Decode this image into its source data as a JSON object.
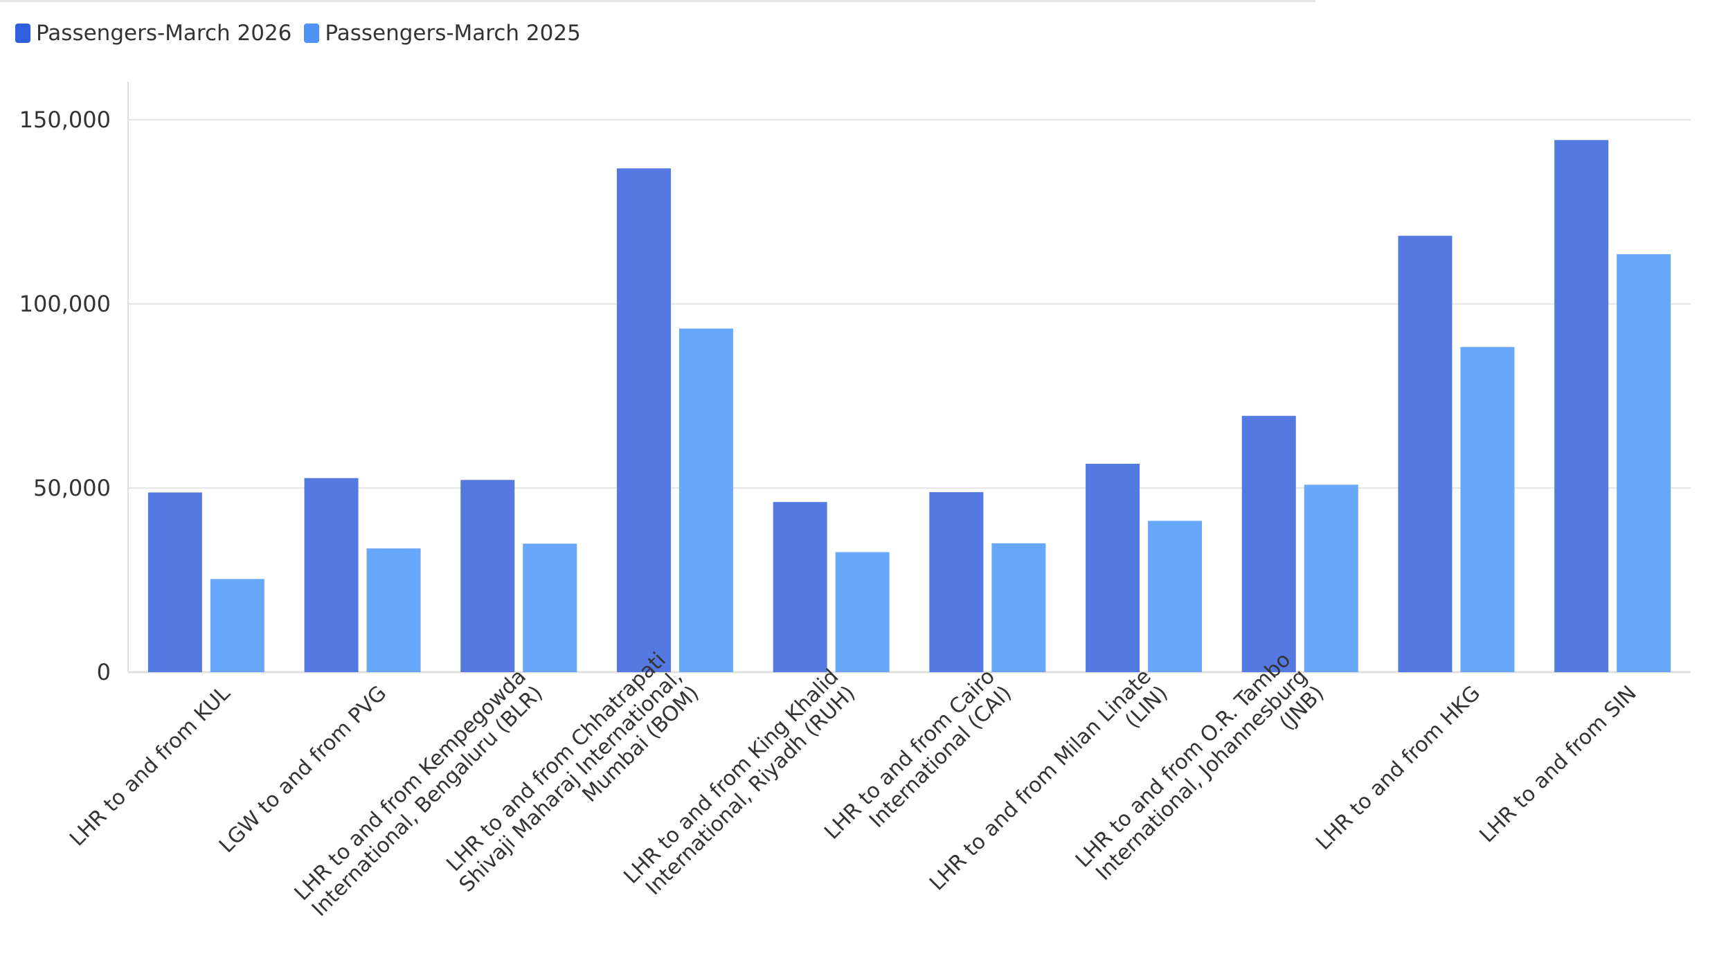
{
  "chart_data": {
    "type": "bar",
    "title": "",
    "xlabel": "",
    "ylabel": "",
    "ylim": [
      0,
      150000
    ],
    "yticks": [
      0,
      50000,
      100000,
      150000
    ],
    "ytick_labels": [
      "0",
      "50,000",
      "100,000",
      "150,000"
    ],
    "grid": true,
    "legend_position": "top-left",
    "categories": [
      "LHR to and from KUL",
      "LGW to and from PVG",
      "LHR to and from Kempegowda International, Bengaluru (BLR)",
      "LHR to and from Chhatrapati Shivaji Maharaj International, Mumbai (BOM)",
      "LHR to and from King Khalid International, Riyadh (RUH)",
      "LHR to and from Cairo International (CAI)",
      "LHR to and from Milan Linate (LIN)",
      "LHR to and from O.R. Tambo International, Johannesburg (JNB)",
      "LHR to and from HKG",
      "LHR to and from SIN"
    ],
    "category_label_lines": [
      [
        "LHR to and from KUL"
      ],
      [
        "LGW to and from PVG"
      ],
      [
        "LHR to and from Kempegowda",
        "International, Bengaluru (BLR)"
      ],
      [
        "LHR to and from Chhatrapati",
        "Shivaji Maharaj International,",
        "Mumbai (BOM)"
      ],
      [
        "LHR to and from King Khalid",
        "International, Riyadh (RUH)"
      ],
      [
        "LHR to and from Cairo",
        "International (CAI)"
      ],
      [
        "LHR to and from Milan Linate",
        "(LIN)"
      ],
      [
        "LHR to and from O.R. Tambo",
        "International, Johannesburg",
        "(JNB)"
      ],
      [
        "LHR to and from HKG"
      ],
      [
        "LHR to and from SIN"
      ]
    ],
    "series": [
      {
        "name": "Passengers-March 2026",
        "color": "#5479e1",
        "legend_color": "#2f5fdc",
        "values": [
          48800,
          52700,
          52200,
          136800,
          46200,
          48900,
          56600,
          69600,
          118500,
          144500
        ]
      },
      {
        "name": "Passengers-March 2025",
        "color": "#68a7fa",
        "legend_color": "#4f94f5",
        "values": [
          25300,
          33600,
          34900,
          93300,
          32600,
          35000,
          41100,
          50900,
          88300,
          113500
        ]
      }
    ]
  },
  "colors": {
    "grid": "#e6e6e6",
    "axis": "#e0e0e0",
    "text": "#333333"
  }
}
